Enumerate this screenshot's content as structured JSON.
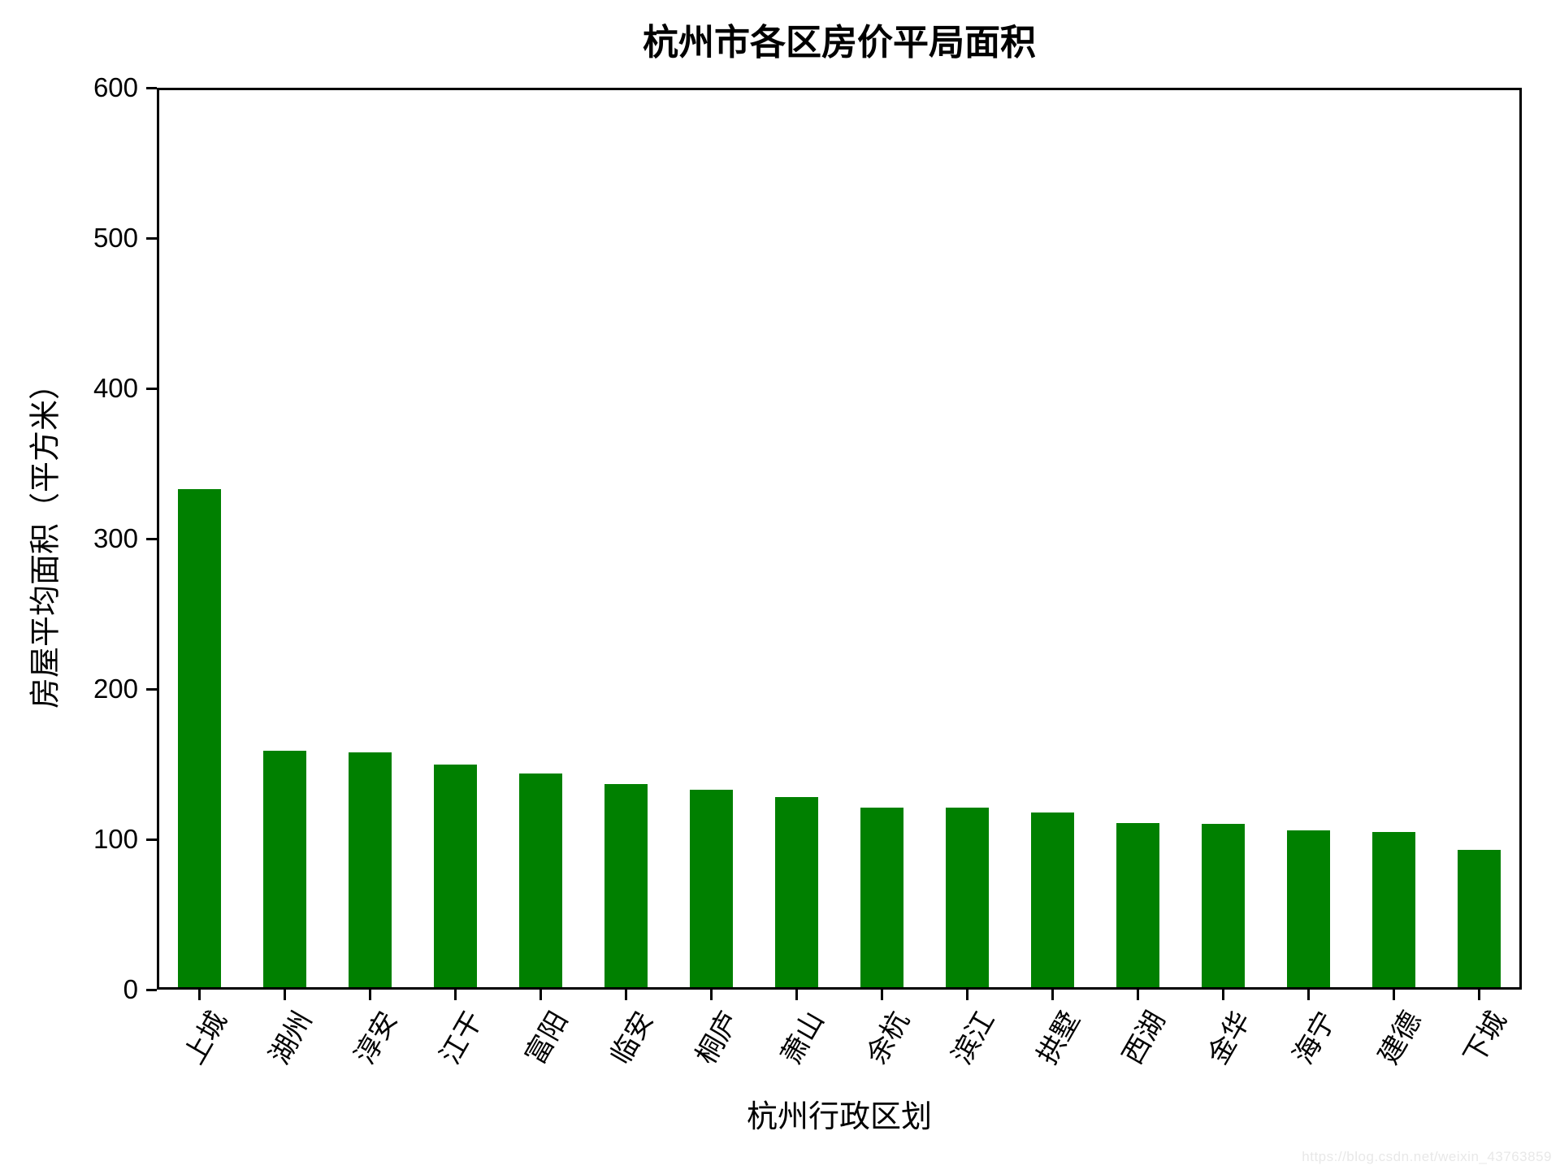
{
  "chart_data": {
    "type": "bar",
    "title": "杭州市各区房价平局面积",
    "xlabel": "杭州行政区划",
    "ylabel": "房屋平均面积（平方米）",
    "categories": [
      "上城",
      "湖州",
      "淳安",
      "江干",
      "富阳",
      "临安",
      "桐庐",
      "萧山",
      "余杭",
      "滨江",
      "拱墅",
      "西湖",
      "金华",
      "海宁",
      "建德",
      "下城"
    ],
    "values": [
      333,
      158,
      157,
      149,
      143,
      136,
      132,
      127,
      120,
      120,
      117,
      110,
      109,
      105,
      104,
      92
    ],
    "ylim": [
      0,
      600
    ],
    "yticks": [
      0,
      100,
      200,
      300,
      400,
      500,
      600
    ],
    "bar_color": "#008000",
    "bar_width_fraction": 0.5,
    "x_tick_label_rotation_deg": 60,
    "grid": false,
    "legend": "none"
  },
  "watermark": {
    "text": "https://blog.csdn.net/weixin_43763859",
    "color": "#e8e8e8"
  }
}
